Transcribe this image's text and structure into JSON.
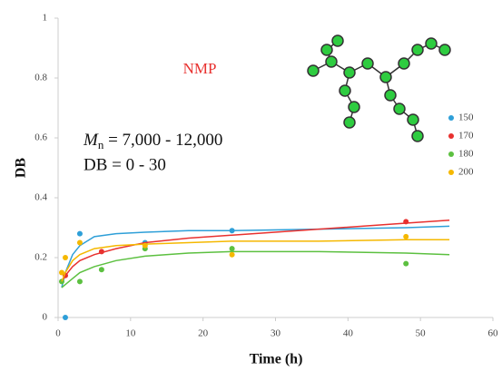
{
  "chart_data": {
    "type": "scatter",
    "x_label": "Time (h)",
    "y_label": "DB",
    "xlim": [
      0,
      60
    ],
    "xticks": [
      0,
      10,
      20,
      30,
      40,
      50,
      60
    ],
    "ylim": [
      0,
      1
    ],
    "yticks": [
      0,
      0.2,
      0.4,
      0.6,
      0.8,
      1
    ],
    "annotations": {
      "solvent": "NMP",
      "mn_symbol": "M",
      "mn_sub": "n",
      "mn_range": " = 7,000 - 12,000",
      "db_range": "DB = 0 - 30"
    },
    "legend": "right",
    "fit_x": [
      0.5,
      1,
      2,
      3,
      5,
      8,
      12,
      18,
      24,
      36,
      48,
      54
    ],
    "series": [
      {
        "name": "150",
        "color": "#2e9fd8",
        "x": [
          1,
          3,
          12,
          24
        ],
        "values": [
          0,
          0.28,
          0.25,
          0.29
        ],
        "fit": [
          0.1,
          0.15,
          0.21,
          0.24,
          0.27,
          0.28,
          0.285,
          0.29,
          0.29,
          0.295,
          0.3,
          0.305
        ]
      },
      {
        "name": "170",
        "color": "#e8312f",
        "x": [
          1,
          6,
          48
        ],
        "values": [
          0.14,
          0.22,
          0.32
        ],
        "fit": [
          0.12,
          0.14,
          0.17,
          0.19,
          0.21,
          0.23,
          0.25,
          0.265,
          0.275,
          0.295,
          0.315,
          0.325
        ]
      },
      {
        "name": "180",
        "color": "#5cc040",
        "x": [
          0.5,
          3,
          6,
          12,
          24,
          48
        ],
        "values": [
          0.12,
          0.12,
          0.16,
          0.23,
          0.23,
          0.18
        ],
        "fit": [
          0.1,
          0.11,
          0.13,
          0.15,
          0.17,
          0.19,
          0.205,
          0.215,
          0.22,
          0.22,
          0.215,
          0.21
        ]
      },
      {
        "name": "200",
        "color": "#f5b800",
        "x": [
          0.5,
          1,
          3,
          12,
          24,
          48
        ],
        "values": [
          0.15,
          0.2,
          0.25,
          0.24,
          0.21,
          0.27
        ],
        "fit": [
          0.12,
          0.15,
          0.19,
          0.21,
          0.23,
          0.24,
          0.245,
          0.25,
          0.255,
          0.255,
          0.26,
          0.26
        ]
      }
    ]
  }
}
